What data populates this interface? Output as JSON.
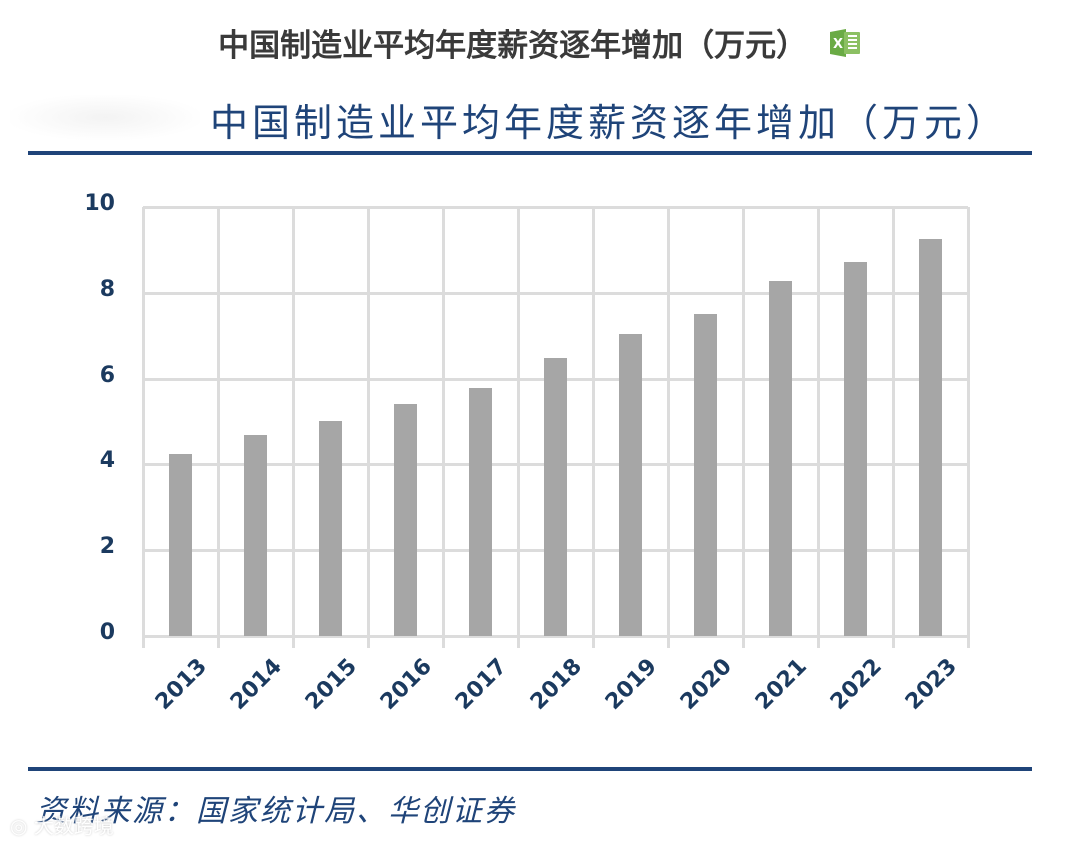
{
  "header": {
    "title": "中国制造业平均年度薪资逐年增加（万元）",
    "icon": "excel-icon"
  },
  "chart": {
    "title": "中国制造业平均年度薪资逐年增加（万元）",
    "source": "资料来源：国家统计局、华创证券",
    "watermark": "大数跨境"
  },
  "colors": {
    "title_navy": "#1f4479",
    "axis_label": "#1b3a5f",
    "bar": "#a6a6a6",
    "grid": "#dcdcdc",
    "excel_green": "#6aab45"
  },
  "chart_data": {
    "type": "bar",
    "title": "中国制造业平均年度薪资逐年增加（万元）",
    "xlabel": "",
    "ylabel": "",
    "categories": [
      "2013",
      "2014",
      "2015",
      "2016",
      "2017",
      "2018",
      "2019",
      "2020",
      "2021",
      "2022",
      "2023"
    ],
    "values": [
      4.25,
      4.69,
      5.02,
      5.41,
      5.77,
      6.48,
      7.05,
      7.5,
      8.27,
      8.71,
      9.25
    ],
    "ylim": [
      0,
      10
    ],
    "yticks": [
      "0",
      "2",
      "4",
      "6",
      "8",
      "10"
    ],
    "grid": true,
    "legend": "none",
    "source": "资料来源：国家统计局、华创证券"
  }
}
